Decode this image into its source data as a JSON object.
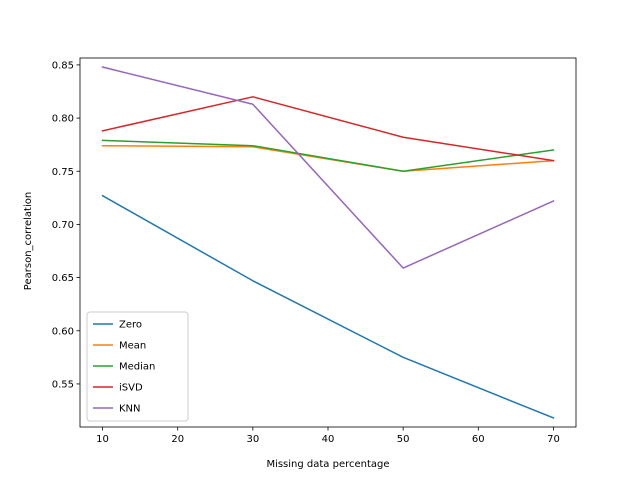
{
  "chart_data": {
    "type": "line",
    "title": "",
    "xlabel": "Missing data percentage",
    "ylabel": "Pearson_correlation",
    "x": [
      10,
      30,
      50,
      70
    ],
    "xlim": [
      7,
      73
    ],
    "ylim": [
      0.5095,
      0.8565
    ],
    "xticks": [
      "10",
      "20",
      "30",
      "40",
      "50",
      "60",
      "70"
    ],
    "yticks": [
      "0.55",
      "0.60",
      "0.65",
      "0.70",
      "0.75",
      "0.80",
      "0.85"
    ],
    "grid": false,
    "legend_position": "lower-left",
    "series": [
      {
        "name": "Zero",
        "color": "#1f77b4",
        "values": [
          0.727,
          0.647,
          0.575,
          0.518
        ]
      },
      {
        "name": "Mean",
        "color": "#ff7f0e",
        "values": [
          0.774,
          0.773,
          0.75,
          0.76
        ]
      },
      {
        "name": "Median",
        "color": "#2ca02c",
        "values": [
          0.779,
          0.774,
          0.75,
          0.77
        ]
      },
      {
        "name": "iSVD",
        "color": "#d62728",
        "values": [
          0.788,
          0.82,
          0.782,
          0.76
        ]
      },
      {
        "name": "KNN",
        "color": "#9467bd",
        "values": [
          0.848,
          0.813,
          0.659,
          0.722
        ]
      }
    ]
  }
}
